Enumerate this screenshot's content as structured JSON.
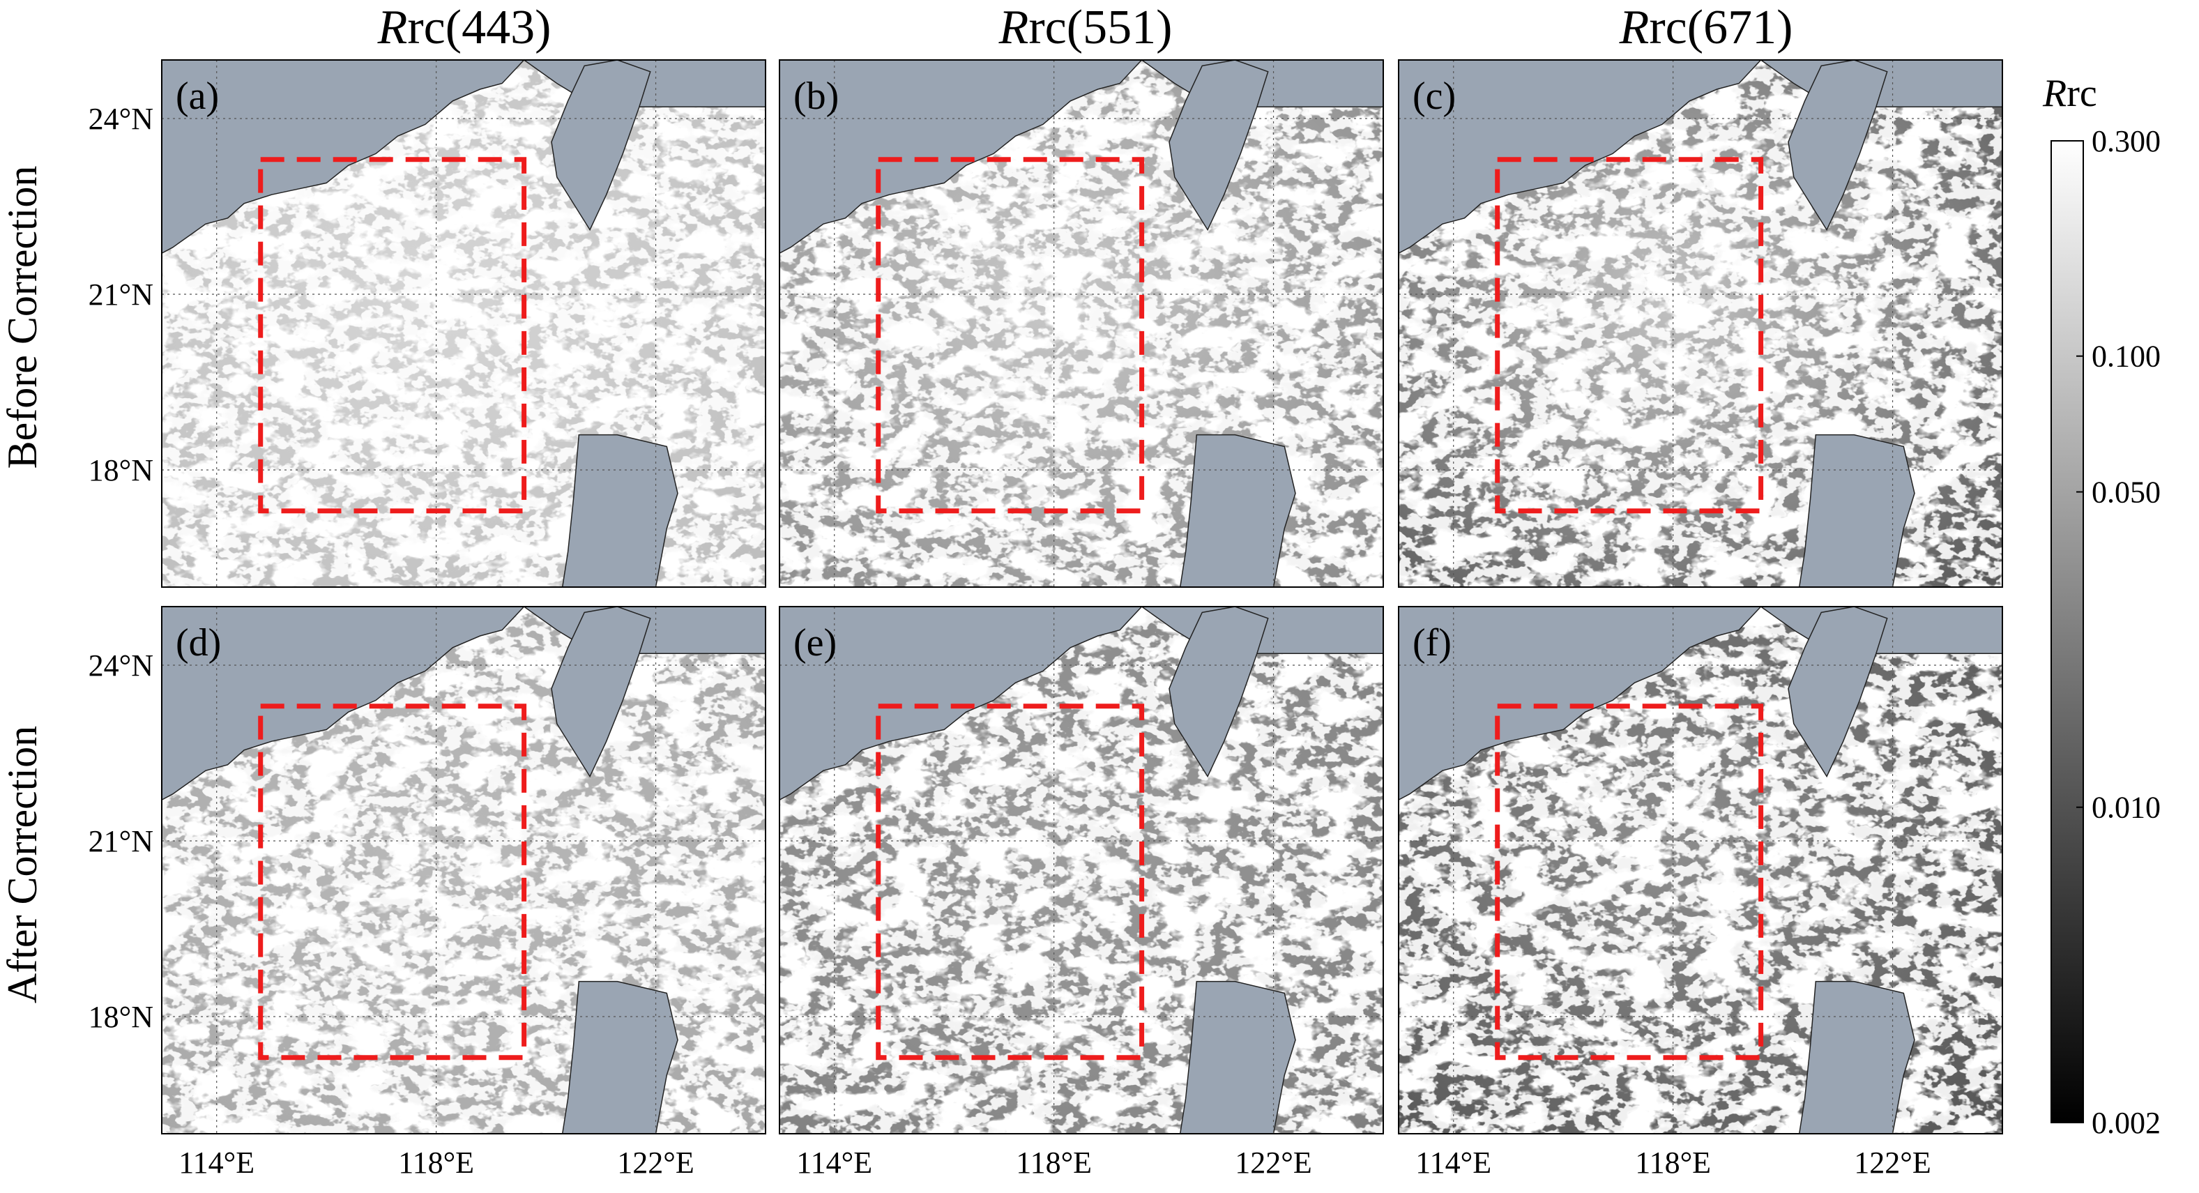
{
  "column_titles": [
    {
      "italic": "R",
      "rest": "rc(443)"
    },
    {
      "italic": "R",
      "rest": "rc(551)"
    },
    {
      "italic": "R",
      "rest": "rc(671)"
    }
  ],
  "row_labels": [
    "Before Correction",
    "After Correction"
  ],
  "panels": [
    {
      "label": "(a)",
      "band": "443",
      "state": "before"
    },
    {
      "label": "(b)",
      "band": "551",
      "state": "before"
    },
    {
      "label": "(c)",
      "band": "671",
      "state": "before"
    },
    {
      "label": "(d)",
      "band": "443",
      "state": "after"
    },
    {
      "label": "(e)",
      "band": "551",
      "state": "after"
    },
    {
      "label": "(f)",
      "band": "671",
      "state": "after"
    }
  ],
  "latitude_ticks": [
    "24°N",
    "21°N",
    "18°N"
  ],
  "longitude_ticks": [
    "114°E",
    "118°E",
    "122°E"
  ],
  "map_extent": {
    "lon": [
      113.0,
      124.0
    ],
    "lat": [
      16.0,
      25.0
    ]
  },
  "study_box": {
    "lon": [
      114.8,
      119.6
    ],
    "lat": [
      17.3,
      23.3
    ],
    "color": "#ee1c1c"
  },
  "colorbar": {
    "title_italic": "R",
    "title_rest": "rc",
    "scale": "log",
    "range": [
      0.002,
      0.3
    ],
    "ticks": [
      "0.300",
      "0.100",
      "0.050",
      "0.010",
      "0.002"
    ]
  },
  "colors": {
    "land": "#9aa5b3",
    "cloud": "#ffffff",
    "box": "#ee1c1c"
  }
}
